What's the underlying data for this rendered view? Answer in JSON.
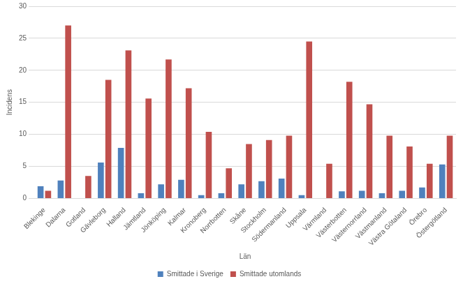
{
  "chart_data": {
    "type": "bar",
    "x_label": "Län",
    "y_label": "Incidens",
    "categories": [
      "Blekinge",
      "Dalarna",
      "Gotland",
      "Gävleborg",
      "Halland",
      "Jämtland",
      "Jönköping",
      "Kalmar",
      "Kronoberg",
      "Norrbotten",
      "Skåne",
      "Stockholm",
      "Södermanland",
      "Uppsala",
      "Värmland",
      "Västerbotten",
      "Västernorrland",
      "Västmanland",
      "Västra Götaland",
      "Örebro",
      "Östergötland"
    ],
    "series": [
      {
        "name": "Smittade i Sverige",
        "color": "#4f81bd",
        "values": [
          1.9,
          2.8,
          0,
          5.6,
          7.9,
          0.8,
          2.2,
          2.9,
          0.5,
          0.8,
          2.2,
          2.7,
          3.1,
          0.5,
          0,
          1.1,
          1.2,
          0.8,
          1.2,
          1.7,
          5.3
        ]
      },
      {
        "name": "Smittade utomlands",
        "color": "#c0504d",
        "values": [
          1.2,
          27.0,
          3.5,
          18.5,
          23.1,
          15.6,
          21.7,
          17.2,
          10.4,
          4.7,
          8.5,
          9.1,
          9.8,
          24.5,
          5.4,
          18.2,
          14.7,
          9.8,
          8.1,
          5.4,
          9.8
        ]
      }
    ],
    "ylim": [
      0,
      30
    ],
    "yticks": [
      0,
      5,
      10,
      15,
      20,
      25,
      30
    ],
    "grid": true,
    "legend": "bottom"
  }
}
